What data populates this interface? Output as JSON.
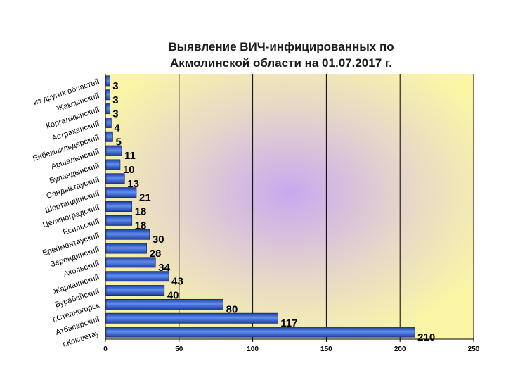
{
  "chart_data": {
    "type": "bar",
    "orientation": "horizontal",
    "title_line1": "Выявление ВИЧ-инфицированных по",
    "title_line2": "Акмолинской области на 01.07.2017 г.",
    "categories": [
      "из других областей",
      "Жаксынский",
      "Коргалжынский",
      "Астраханский",
      "Енбекшильдерский",
      "Аршалынский",
      "Буландынский",
      "Сандыктауский",
      "Шортандинский",
      "Целиноградский",
      "Есильский",
      "Ерейментауский",
      "Зерендинский",
      "Акольский",
      "Жаркаинский",
      "Бурабайский",
      "г.Степногорск",
      "Атбасарский",
      "г.Кокшетау"
    ],
    "values": [
      3,
      3,
      3,
      4,
      5,
      11,
      10,
      13,
      21,
      18,
      18,
      30,
      28,
      34,
      43,
      40,
      80,
      117,
      210
    ],
    "xlim": [
      0,
      250
    ],
    "xticks": [
      0,
      50,
      100,
      150,
      200,
      250
    ],
    "grid": "vertical",
    "legend": "none",
    "colors": {
      "plot_bg_inner": "#c9a8f0",
      "plot_bg_outer": "#faf6a6",
      "bar_dark": "#1f3f9e",
      "bar_light": "#5f8df0",
      "grid": "#000000"
    }
  }
}
